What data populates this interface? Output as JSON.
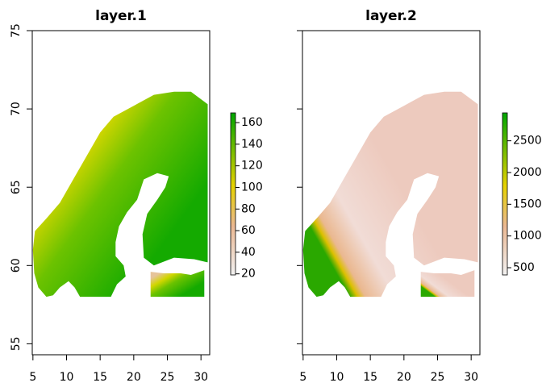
{
  "chart_data": [
    {
      "type": "raster",
      "title": "layer.1",
      "xlim": [
        4.9,
        31.3
      ],
      "ylim": [
        54.3,
        75
      ],
      "xticks": [
        5,
        10,
        15,
        20,
        25,
        30
      ],
      "yticks": [
        55,
        60,
        65,
        70,
        75
      ],
      "ytick_labels": true,
      "legend": {
        "lim": [
          19,
          169
        ],
        "ticks": [
          20,
          40,
          60,
          80,
          100,
          120,
          140,
          160
        ]
      }
    },
    {
      "type": "raster",
      "title": "layer.2",
      "xlim": [
        4.9,
        31.3
      ],
      "ylim": [
        54.3,
        75
      ],
      "xticks": [
        5,
        10,
        15,
        20,
        25,
        30
      ],
      "yticks": [
        55,
        60,
        65,
        70,
        75
      ],
      "ytick_labels": false,
      "legend": {
        "lim": [
          386,
          2940
        ],
        "ticks": [
          500,
          1000,
          1500,
          2000,
          2500
        ]
      }
    }
  ]
}
